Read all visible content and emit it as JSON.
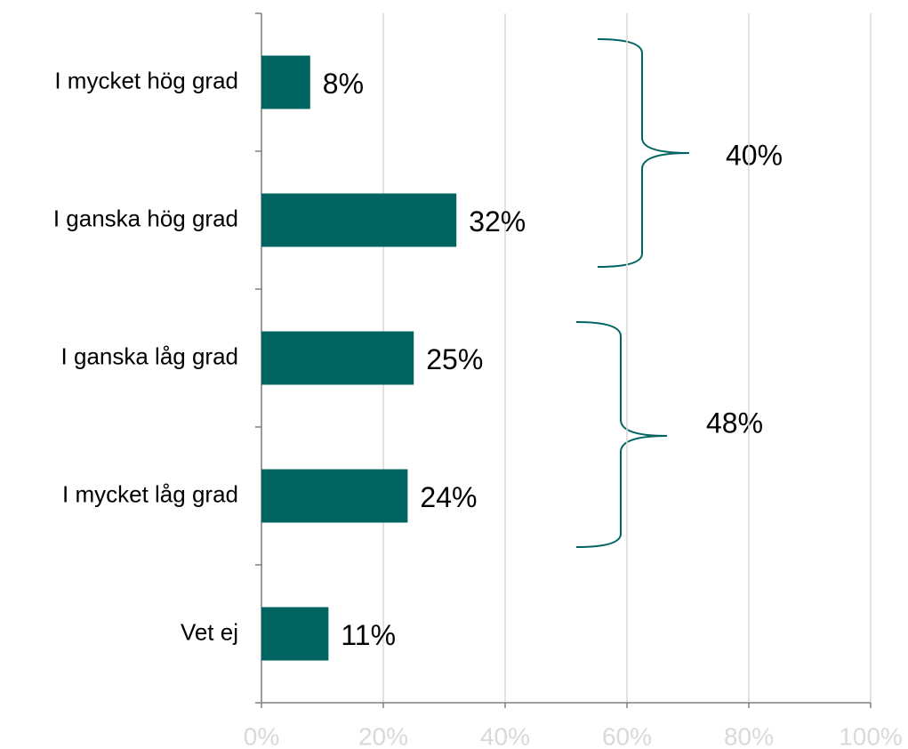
{
  "chart_data": {
    "type": "hbar",
    "categories": [
      "I mycket hög grad",
      "I ganska hög grad",
      "I ganska låg grad",
      "I mycket låg grad",
      "Vet ej"
    ],
    "values": [
      8,
      32,
      25,
      24,
      11
    ],
    "value_labels": [
      "8%",
      "32%",
      "25%",
      "24%",
      "11%"
    ],
    "color": "#006461",
    "xlim": [
      0,
      100
    ],
    "xticks": [
      {
        "value": 0,
        "label": "0%"
      },
      {
        "value": 20,
        "label": "20%"
      },
      {
        "value": 40,
        "label": "40%"
      },
      {
        "value": 60,
        "label": "60%"
      },
      {
        "value": 80,
        "label": "80%"
      },
      {
        "value": 100,
        "label": "100%"
      }
    ],
    "grid": true,
    "annotations": [
      {
        "text": "40%"
      },
      {
        "text": "48%"
      }
    ]
  }
}
